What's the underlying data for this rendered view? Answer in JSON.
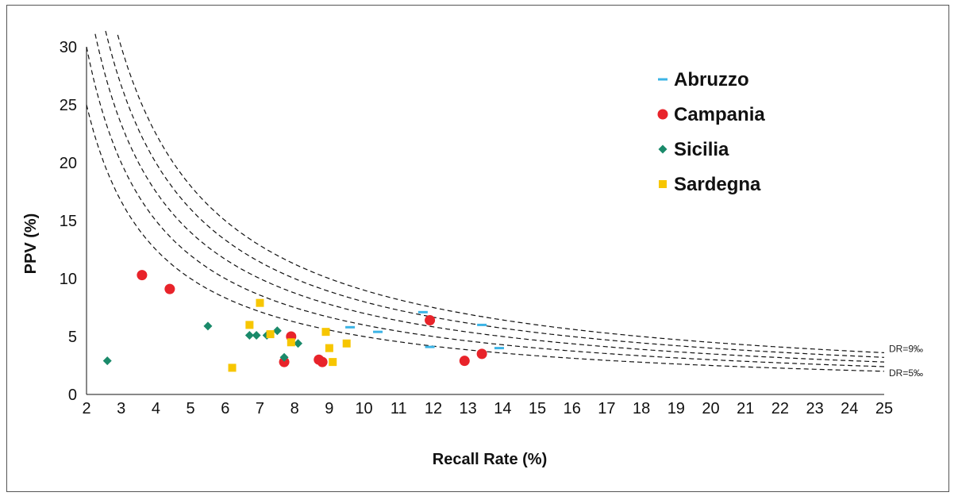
{
  "chart_data": {
    "type": "scatter",
    "title": "",
    "xlabel": "Recall Rate (%)",
    "ylabel": "PPV (%)",
    "xlim": [
      2,
      25
    ],
    "ylim": [
      0,
      30
    ],
    "xticks": [
      "2",
      "3",
      "4",
      "5",
      "6",
      "7",
      "8",
      "9",
      "10",
      "11",
      "12",
      "13",
      "14",
      "15",
      "16",
      "17",
      "18",
      "19",
      "20",
      "21",
      "22",
      "23",
      "24",
      "25"
    ],
    "yticks": [
      "0",
      "5",
      "10",
      "15",
      "20",
      "25",
      "30"
    ],
    "grid": false,
    "legend_position": "top-right",
    "series": [
      {
        "name": "Abruzzo",
        "marker": "dash",
        "color": "#3cb4e6",
        "points": [
          [
            9.6,
            5.8
          ],
          [
            10.4,
            5.4
          ],
          [
            11.7,
            7.1
          ],
          [
            11.9,
            4.1
          ],
          [
            13.4,
            6.0
          ],
          [
            13.9,
            4.0
          ]
        ]
      },
      {
        "name": "Campania",
        "marker": "circle",
        "color": "#e8232a",
        "points": [
          [
            3.6,
            10.3
          ],
          [
            4.4,
            9.1
          ],
          [
            7.7,
            2.8
          ],
          [
            7.9,
            5.0
          ],
          [
            8.7,
            3.0
          ],
          [
            8.8,
            2.8
          ],
          [
            11.9,
            6.4
          ],
          [
            12.9,
            2.9
          ],
          [
            13.4,
            3.5
          ]
        ]
      },
      {
        "name": "Sicilia",
        "marker": "diamond",
        "color": "#1a8a6a",
        "points": [
          [
            2.6,
            2.9
          ],
          [
            5.5,
            5.9
          ],
          [
            6.7,
            5.1
          ],
          [
            6.9,
            5.1
          ],
          [
            7.2,
            5.1
          ],
          [
            7.5,
            5.5
          ],
          [
            7.7,
            3.2
          ],
          [
            8.1,
            4.4
          ]
        ]
      },
      {
        "name": "Sardegna",
        "marker": "square",
        "color": "#f7c600",
        "points": [
          [
            6.2,
            2.3
          ],
          [
            6.7,
            6.0
          ],
          [
            7.0,
            7.9
          ],
          [
            7.3,
            5.2
          ],
          [
            7.9,
            4.5
          ],
          [
            8.9,
            5.4
          ],
          [
            9.0,
            4.0
          ],
          [
            9.1,
            2.8
          ],
          [
            9.5,
            4.4
          ]
        ]
      }
    ],
    "reference_curves": {
      "style": "dashed",
      "detection_rates_permille": [
        5,
        6,
        7,
        8,
        9
      ],
      "labels": [
        {
          "text": "DR=9‰",
          "curve": 9
        },
        {
          "text": "DR=5‰",
          "curve": 5
        }
      ]
    }
  }
}
